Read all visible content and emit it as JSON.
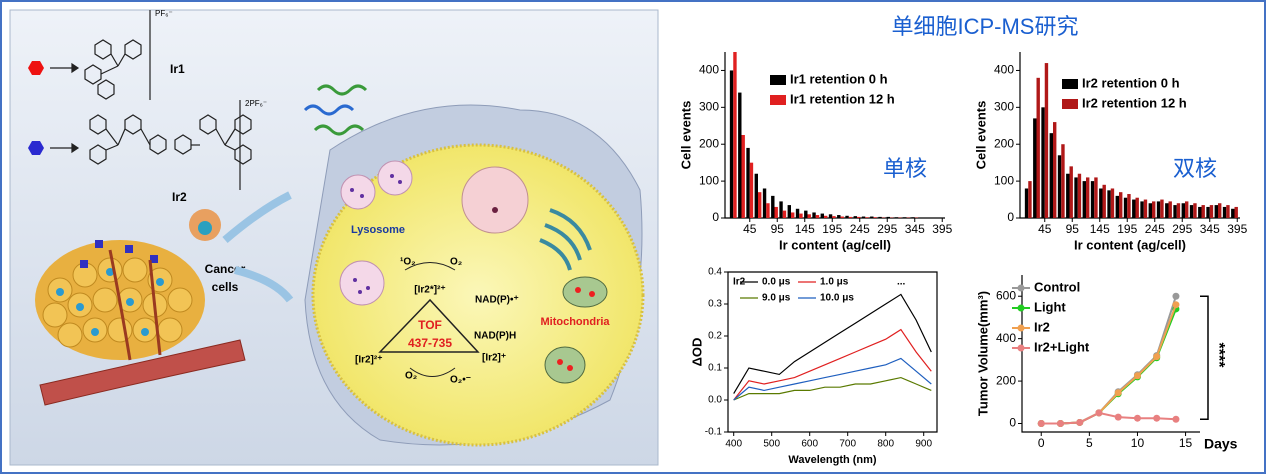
{
  "title": "单细胞ICP-MS研究",
  "illustration": {
    "ir1": "Ir1",
    "ir2": "Ir2",
    "pf1": "PF₆⁻",
    "pf2": "2PF₆⁻",
    "cancer": "Cancer",
    "cells": "cells",
    "lysosome": "Lysosome",
    "mitochondria": "Mitochondria",
    "tof": "TOF",
    "tof_range": "437-735",
    "excited": "[Ir2*]²⁺",
    "nadp_radical": "NAD(P)•⁺",
    "nadph": "NAD(P)H",
    "reduced": "[Ir2]⁺",
    "ground": "[Ir2]²⁺",
    "singlet_o2": "¹O₂",
    "o2_top": "O₂",
    "o2_bottom": "O₂",
    "superoxide": "O₂•⁻"
  },
  "chart_data": [
    {
      "type": "bar",
      "annotation": "单核",
      "xlabel": "Ir content (ag/cell)",
      "ylabel": "Cell events",
      "x": [
        15,
        30,
        45,
        60,
        75,
        90,
        105,
        120,
        135,
        150,
        165,
        180,
        195,
        210,
        225,
        240,
        255,
        270,
        285,
        300,
        315,
        330,
        345,
        360,
        375,
        390
      ],
      "series": [
        {
          "name": "Ir1 retention 0 h",
          "color": "#000000",
          "values": [
            400,
            340,
            190,
            120,
            80,
            60,
            45,
            35,
            25,
            20,
            15,
            12,
            10,
            8,
            6,
            5,
            4,
            4,
            3,
            3,
            2,
            2,
            2,
            1,
            1,
            1
          ]
        },
        {
          "name": "Ir1 retention 12 h",
          "color": "#e02020",
          "values": [
            450,
            225,
            150,
            70,
            40,
            30,
            20,
            15,
            12,
            10,
            8,
            6,
            5,
            4,
            3,
            3,
            2,
            2,
            1,
            1,
            1,
            1,
            1,
            0,
            0,
            0
          ]
        }
      ],
      "xlim": [
        0,
        400
      ],
      "xticks": [
        45,
        95,
        145,
        195,
        245,
        295,
        345,
        395
      ],
      "ylim": [
        0,
        450
      ],
      "yticks": [
        0,
        100,
        200,
        300,
        400
      ]
    },
    {
      "type": "bar",
      "annotation": "双核",
      "xlabel": "Ir content (ag/cell)",
      "ylabel": "Cell events",
      "x": [
        15,
        30,
        45,
        60,
        75,
        90,
        105,
        120,
        135,
        150,
        165,
        180,
        195,
        210,
        225,
        240,
        255,
        270,
        285,
        300,
        315,
        330,
        345,
        360,
        375,
        390
      ],
      "series": [
        {
          "name": "Ir2 retention 0 h",
          "color": "#000000",
          "values": [
            80,
            270,
            300,
            230,
            170,
            120,
            110,
            100,
            100,
            80,
            75,
            60,
            55,
            50,
            45,
            40,
            45,
            40,
            35,
            40,
            35,
            30,
            30,
            35,
            30,
            25
          ]
        },
        {
          "name": "Ir2 retention 12 h",
          "color": "#b01818",
          "values": [
            100,
            380,
            420,
            260,
            200,
            140,
            120,
            110,
            110,
            90,
            80,
            70,
            65,
            55,
            50,
            45,
            50,
            45,
            40,
            45,
            40,
            35,
            35,
            40,
            35,
            30
          ]
        }
      ],
      "xlim": [
        0,
        400
      ],
      "xticks": [
        45,
        95,
        145,
        195,
        245,
        295,
        345,
        395
      ],
      "ylim": [
        0,
        450
      ],
      "yticks": [
        0,
        100,
        200,
        300,
        400
      ]
    },
    {
      "type": "line",
      "legend_title": "Ir2",
      "legend_note": "...",
      "xlabel": "Wavelength (nm)",
      "ylabel": "ΔOD",
      "x": [
        400,
        440,
        480,
        520,
        560,
        600,
        640,
        680,
        720,
        760,
        800,
        840,
        880,
        920
      ],
      "series": [
        {
          "name": "0.0 μs",
          "color": "#000000",
          "values": [
            0.02,
            0.1,
            0.09,
            0.08,
            0.12,
            0.15,
            0.18,
            0.21,
            0.24,
            0.27,
            0.3,
            0.33,
            0.25,
            0.15
          ]
        },
        {
          "name": "1.0 μs",
          "color": "#e02020",
          "values": [
            0.0,
            0.06,
            0.05,
            0.06,
            0.07,
            0.09,
            0.11,
            0.13,
            0.15,
            0.17,
            0.19,
            0.22,
            0.15,
            0.09
          ]
        },
        {
          "name": "9.0 μs",
          "color": "#5a7a00",
          "values": [
            0.0,
            0.02,
            0.02,
            0.02,
            0.03,
            0.03,
            0.04,
            0.04,
            0.05,
            0.05,
            0.06,
            0.07,
            0.05,
            0.03
          ]
        },
        {
          "name": "10.0 μs",
          "color": "#1f5fbf",
          "values": [
            0.0,
            0.04,
            0.03,
            0.04,
            0.05,
            0.06,
            0.07,
            0.08,
            0.09,
            0.1,
            0.11,
            0.13,
            0.09,
            0.05
          ]
        }
      ],
      "xlim": [
        385,
        935
      ],
      "xticks": [
        400,
        500,
        600,
        700,
        800,
        900
      ],
      "ylim": [
        -0.1,
        0.4
      ],
      "yticks": [
        -0.1,
        {
          "value": 0,
          "label": "0.0"
        },
        0.1,
        0.2,
        0.3,
        0.4
      ]
    },
    {
      "type": "line",
      "markers": true,
      "annotation": "****",
      "xlabel": "Days",
      "ylabel": "Tumor Volume(mm³)",
      "x": [
        0,
        2,
        4,
        6,
        8,
        10,
        12,
        14
      ],
      "series": [
        {
          "name": "Control",
          "color": "#999999",
          "values": [
            0,
            0,
            5,
            50,
            150,
            230,
            320,
            600
          ]
        },
        {
          "name": "Light",
          "color": "#22cc22",
          "values": [
            0,
            0,
            5,
            50,
            140,
            220,
            310,
            540
          ]
        },
        {
          "name": "Ir2",
          "color": "#f0a050",
          "values": [
            0,
            0,
            5,
            50,
            145,
            225,
            315,
            560
          ]
        },
        {
          "name": "Ir2+Light",
          "color": "#e88080",
          "values": [
            0,
            0,
            5,
            50,
            30,
            25,
            25,
            20
          ]
        }
      ],
      "xlim": [
        -2,
        16.5
      ],
      "xticks": [
        0,
        5,
        10,
        15
      ],
      "ylim": [
        -40,
        700
      ],
      "yticks": [
        0,
        200,
        400,
        600
      ]
    }
  ]
}
